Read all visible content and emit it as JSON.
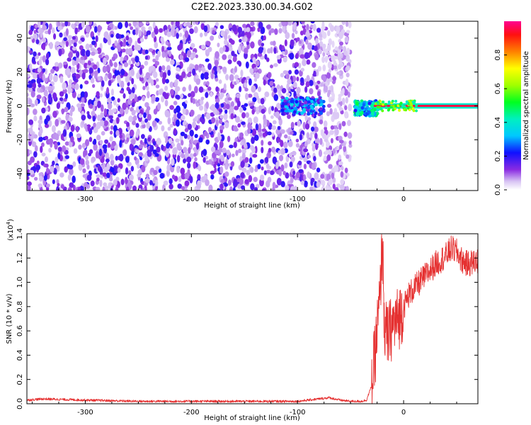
{
  "title": "C2E2.2023.330.00.34.G02",
  "charts": {
    "spectrogram": {
      "xlabel": "Height of straight line (km)",
      "ylabel": "Frequency (Hz)",
      "xticks": [
        -300,
        -200,
        -100,
        0
      ],
      "yticks": [
        -40,
        -20,
        0,
        20,
        40
      ],
      "colorbar": {
        "label": "Normalized spectral amplitude",
        "ticks": [
          "0.0",
          "0.2",
          "0.4",
          "0.6",
          "0.8"
        ]
      }
    },
    "snr": {
      "xlabel": "Height of straight line (km)",
      "ylabel": "SNR (10 * v/v)",
      "scale_label": "(x10",
      "scale_exp": "4",
      "scale_close": ")",
      "xticks": [
        -300,
        -200,
        -100,
        0
      ],
      "yticks": [
        "0.0",
        "0.2",
        "0.4",
        "0.6",
        "0.8",
        "1.0",
        "1.2",
        "1.4"
      ]
    }
  },
  "chart_data": [
    {
      "type": "heatmap",
      "title": "C2E2.2023.330.00.34.G02",
      "xlabel": "Height of straight line (km)",
      "ylabel": "Frequency (Hz)",
      "xlim": [
        -355,
        70
      ],
      "ylim": [
        -50,
        50
      ],
      "colorbar": {
        "label": "Normalized spectral amplitude",
        "range": [
          0.0,
          1.0
        ]
      },
      "regions": [
        {
          "x": [
            -355,
            -50
          ],
          "freq": [
            -50,
            50
          ],
          "amplitude": "0.0-0.15 scattered noise"
        },
        {
          "x": [
            -115,
            -75
          ],
          "freq": [
            -5,
            5
          ],
          "amplitude": "0.1-0.35"
        },
        {
          "x": [
            -45,
            -25
          ],
          "freq": [
            -6,
            3
          ],
          "amplitude": "0.25-0.45"
        },
        {
          "x": [
            -25,
            70
          ],
          "freq": [
            -1.5,
            1.5
          ],
          "amplitude": "0.8-1.0 carrier line"
        }
      ],
      "grid": false
    },
    {
      "type": "line",
      "title": "",
      "xlabel": "Height of straight line (km)",
      "ylabel": "SNR (10 * v/v)",
      "y_scale_factor": 10000,
      "xlim": [
        -355,
        70
      ],
      "ylim": [
        0.0,
        1.4
      ],
      "series": [
        {
          "color": "#e53030",
          "x": [
            -355,
            -340,
            -300,
            -250,
            -200,
            -150,
            -100,
            -70,
            -60,
            -50,
            -40,
            -35,
            -30,
            -27,
            -24,
            -22,
            -20,
            -18,
            -15,
            -10,
            -5,
            0,
            5,
            10,
            20,
            30,
            40,
            45,
            50,
            55,
            60,
            70
          ],
          "y": [
            0.03,
            0.04,
            0.03,
            0.02,
            0.02,
            0.02,
            0.02,
            0.05,
            0.03,
            0.02,
            0.02,
            0.03,
            0.15,
            0.4,
            0.7,
            0.9,
            1.38,
            0.6,
            0.55,
            0.65,
            0.7,
            0.8,
            0.9,
            0.95,
            1.05,
            1.15,
            1.22,
            1.28,
            1.25,
            1.18,
            1.15,
            1.18
          ]
        }
      ],
      "grid": false
    }
  ]
}
